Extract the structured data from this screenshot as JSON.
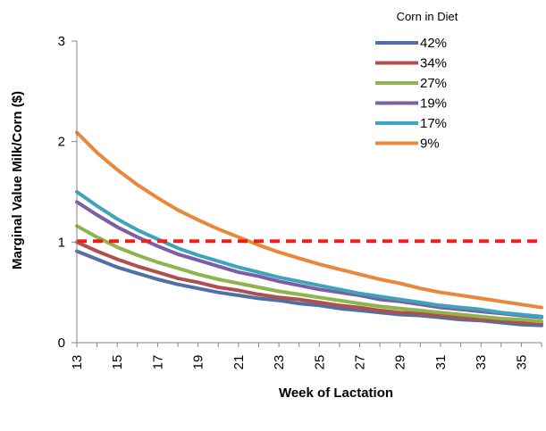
{
  "chart_data": {
    "type": "line",
    "xlabel": "Week of Lactation",
    "ylabel": "Marginal Value Milk/Corn  ($)",
    "legend_title": "Corn in Diet",
    "legend_position": "top-right",
    "ylim": [
      0,
      3
    ],
    "yticks": [
      "0",
      "1",
      "2",
      "3"
    ],
    "x": [
      13,
      14,
      15,
      16,
      17,
      18,
      19,
      20,
      21,
      22,
      23,
      24,
      25,
      26,
      27,
      28,
      29,
      30,
      31,
      32,
      33,
      34,
      35,
      36
    ],
    "xtick_labels": [
      "13",
      "15",
      "17",
      "19",
      "21",
      "23",
      "25",
      "27",
      "29",
      "31",
      "33",
      "35"
    ],
    "series": [
      {
        "name": "42%",
        "color": "#4F6FA8",
        "values": [
          0.91,
          0.83,
          0.75,
          0.69,
          0.63,
          0.58,
          0.54,
          0.5,
          0.47,
          0.44,
          0.42,
          0.39,
          0.37,
          0.34,
          0.32,
          0.3,
          0.28,
          0.27,
          0.25,
          0.23,
          0.22,
          0.2,
          0.18,
          0.17
        ]
      },
      {
        "name": "34%",
        "color": "#B0504E",
        "values": [
          1.0,
          0.91,
          0.83,
          0.76,
          0.7,
          0.64,
          0.6,
          0.55,
          0.52,
          0.48,
          0.45,
          0.43,
          0.4,
          0.37,
          0.35,
          0.32,
          0.3,
          0.29,
          0.27,
          0.25,
          0.23,
          0.22,
          0.2,
          0.19
        ]
      },
      {
        "name": "27%",
        "color": "#8DB54B",
        "values": [
          1.16,
          1.05,
          0.95,
          0.87,
          0.8,
          0.74,
          0.68,
          0.63,
          0.59,
          0.55,
          0.51,
          0.48,
          0.45,
          0.42,
          0.39,
          0.36,
          0.34,
          0.32,
          0.3,
          0.28,
          0.26,
          0.24,
          0.23,
          0.21
        ]
      },
      {
        "name": "19%",
        "color": "#7B5EA3",
        "values": [
          1.4,
          1.27,
          1.15,
          1.05,
          0.96,
          0.88,
          0.82,
          0.76,
          0.7,
          0.66,
          0.61,
          0.57,
          0.53,
          0.5,
          0.47,
          0.43,
          0.41,
          0.38,
          0.35,
          0.33,
          0.31,
          0.29,
          0.27,
          0.25
        ]
      },
      {
        "name": "17%",
        "color": "#3EA4BC",
        "values": [
          1.5,
          1.36,
          1.23,
          1.12,
          1.03,
          0.94,
          0.87,
          0.81,
          0.75,
          0.7,
          0.65,
          0.61,
          0.57,
          0.53,
          0.49,
          0.46,
          0.43,
          0.4,
          0.37,
          0.35,
          0.33,
          0.3,
          0.28,
          0.26
        ]
      },
      {
        "name": "9%",
        "color": "#E8883A",
        "values": [
          2.09,
          1.89,
          1.72,
          1.57,
          1.44,
          1.32,
          1.22,
          1.13,
          1.05,
          0.97,
          0.9,
          0.84,
          0.78,
          0.73,
          0.68,
          0.63,
          0.59,
          0.54,
          0.5,
          0.47,
          0.44,
          0.41,
          0.38,
          0.35
        ]
      }
    ],
    "reference_line": {
      "y": 1.01,
      "color": "#E8211D",
      "style": "dashed"
    }
  }
}
